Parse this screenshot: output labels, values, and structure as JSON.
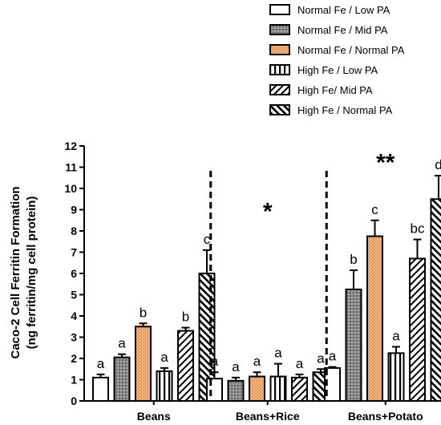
{
  "chart_data": {
    "type": "bar",
    "ylabel_line1": "Caco-2 Cell Ferritin  Formation",
    "ylabel_line2": "(ng ferritin/mg cell protein)",
    "ylim": [
      0,
      12
    ],
    "yticks": [
      "0",
      "1",
      "2",
      "3",
      "4",
      "5",
      "6",
      "7",
      "8",
      "9",
      "10",
      "11",
      "12"
    ],
    "categories": [
      "Beans",
      "Beans+Rice",
      "Beans+Potato"
    ],
    "legend_position": "top-right",
    "series": [
      {
        "name": "Normal Fe / Low PA",
        "values": [
          1.1,
          1.05,
          1.55
        ],
        "errors": [
          0.15,
          0.3,
          0.05
        ],
        "letters": [
          "a",
          "a",
          "a"
        ]
      },
      {
        "name": "Normal Fe / Mid PA",
        "values": [
          2.05,
          0.95,
          5.25
        ],
        "errors": [
          0.15,
          0.15,
          0.9
        ],
        "letters": [
          "a",
          "a",
          "b"
        ]
      },
      {
        "name": "Normal Fe / Normal PA",
        "values": [
          3.5,
          1.15,
          7.75
        ],
        "errors": [
          0.15,
          0.2,
          0.75
        ],
        "letters": [
          "b",
          "a",
          "c"
        ]
      },
      {
        "name": "High Fe / Low PA",
        "values": [
          1.4,
          1.15,
          2.25
        ],
        "errors": [
          0.15,
          0.6,
          0.3
        ],
        "letters": [
          "a",
          "a",
          "a"
        ]
      },
      {
        "name": "High Fe/ Mid PA",
        "values": [
          3.3,
          1.1,
          6.7
        ],
        "errors": [
          0.15,
          0.15,
          0.9
        ],
        "letters": [
          "b",
          "a",
          "bc"
        ]
      },
      {
        "name": "High Fe / Normal PA",
        "values": [
          6.0,
          1.35,
          9.5
        ],
        "errors": [
          1.1,
          0.15,
          1.1
        ],
        "letters": [
          "c",
          "a",
          "d"
        ]
      }
    ],
    "annotations": [
      {
        "text": "*",
        "category": "Beans+Rice",
        "y": 9.0
      },
      {
        "text": "**",
        "category": "Beans+Potato",
        "y": 11.3
      }
    ]
  }
}
